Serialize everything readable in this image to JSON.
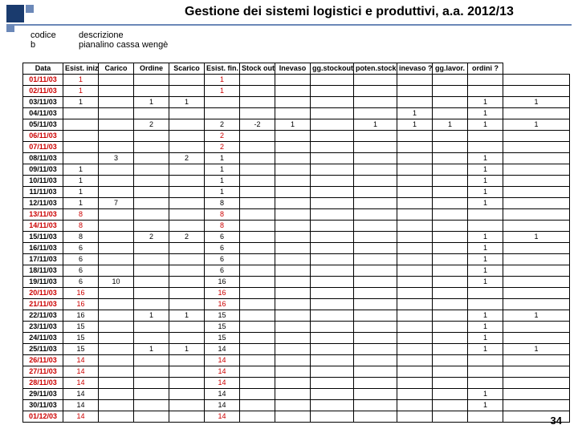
{
  "title": "Gestione dei sistemi logistici e produttivi, a.a. 2012/13",
  "page_number": "34",
  "meta": {
    "code_label": "codice",
    "code_value": "b",
    "desc_label": "descrizione",
    "desc_value": "pianalino cassa wengè"
  },
  "columns": [
    "Data",
    "Esist. iniz.",
    "Carico",
    "Ordine",
    "Scarico",
    "Esist. fin.",
    "Stock out",
    "Inevaso",
    "gg.stockout",
    "poten.stockout",
    "inevaso ?",
    "gg.lavor.",
    "ordini ?"
  ],
  "rows": [
    {
      "date": "01/11/03",
      "red": true,
      "cells": [
        "1",
        "",
        "",
        "",
        "1",
        "",
        "",
        "",
        "",
        "",
        "",
        "",
        ""
      ]
    },
    {
      "date": "02/11/03",
      "red": true,
      "cells": [
        "1",
        "",
        "",
        "",
        "1",
        "",
        "",
        "",
        "",
        "",
        "",
        "",
        ""
      ]
    },
    {
      "date": "03/11/03",
      "red": false,
      "cells": [
        "1",
        "",
        "1",
        "1",
        "",
        "",
        "",
        "",
        "",
        "",
        "",
        "1",
        "1"
      ]
    },
    {
      "date": "04/11/03",
      "red": false,
      "cells": [
        "",
        "",
        "",
        "",
        "",
        "",
        "",
        "",
        "",
        "1",
        "",
        "1",
        ""
      ]
    },
    {
      "date": "05/11/03",
      "red": false,
      "cells": [
        "",
        "",
        "2",
        "",
        "2",
        "-2",
        "1",
        "",
        "1",
        "1",
        "1",
        "1",
        "1"
      ]
    },
    {
      "date": "06/11/03",
      "red": true,
      "cells": [
        "",
        "",
        "",
        "",
        "2",
        "",
        "",
        "",
        "",
        "",
        "",
        "",
        ""
      ]
    },
    {
      "date": "07/11/03",
      "red": true,
      "cells": [
        "",
        "",
        "",
        "",
        "2",
        "",
        "",
        "",
        "",
        "",
        "",
        "",
        ""
      ]
    },
    {
      "date": "08/11/03",
      "red": false,
      "cells": [
        "",
        "3",
        "",
        "2",
        "1",
        "",
        "",
        "",
        "",
        "",
        "",
        "1",
        ""
      ]
    },
    {
      "date": "09/11/03",
      "red": false,
      "cells": [
        "1",
        "",
        "",
        "",
        "1",
        "",
        "",
        "",
        "",
        "",
        "",
        "1",
        ""
      ]
    },
    {
      "date": "10/11/03",
      "red": false,
      "cells": [
        "1",
        "",
        "",
        "",
        "1",
        "",
        "",
        "",
        "",
        "",
        "",
        "1",
        ""
      ]
    },
    {
      "date": "11/11/03",
      "red": false,
      "cells": [
        "1",
        "",
        "",
        "",
        "1",
        "",
        "",
        "",
        "",
        "",
        "",
        "1",
        ""
      ]
    },
    {
      "date": "12/11/03",
      "red": false,
      "cells": [
        "1",
        "7",
        "",
        "",
        "8",
        "",
        "",
        "",
        "",
        "",
        "",
        "1",
        ""
      ]
    },
    {
      "date": "13/11/03",
      "red": true,
      "cells": [
        "8",
        "",
        "",
        "",
        "8",
        "",
        "",
        "",
        "",
        "",
        "",
        "",
        ""
      ]
    },
    {
      "date": "14/11/03",
      "red": true,
      "cells": [
        "8",
        "",
        "",
        "",
        "8",
        "",
        "",
        "",
        "",
        "",
        "",
        "",
        ""
      ]
    },
    {
      "date": "15/11/03",
      "red": false,
      "cells": [
        "8",
        "",
        "2",
        "2",
        "6",
        "",
        "",
        "",
        "",
        "",
        "",
        "1",
        "1"
      ]
    },
    {
      "date": "16/11/03",
      "red": false,
      "cells": [
        "6",
        "",
        "",
        "",
        "6",
        "",
        "",
        "",
        "",
        "",
        "",
        "1",
        ""
      ]
    },
    {
      "date": "17/11/03",
      "red": false,
      "cells": [
        "6",
        "",
        "",
        "",
        "6",
        "",
        "",
        "",
        "",
        "",
        "",
        "1",
        ""
      ]
    },
    {
      "date": "18/11/03",
      "red": false,
      "cells": [
        "6",
        "",
        "",
        "",
        "6",
        "",
        "",
        "",
        "",
        "",
        "",
        "1",
        ""
      ]
    },
    {
      "date": "19/11/03",
      "red": false,
      "cells": [
        "6",
        "10",
        "",
        "",
        "16",
        "",
        "",
        "",
        "",
        "",
        "",
        "1",
        ""
      ]
    },
    {
      "date": "20/11/03",
      "red": true,
      "cells": [
        "16",
        "",
        "",
        "",
        "16",
        "",
        "",
        "",
        "",
        "",
        "",
        "",
        ""
      ]
    },
    {
      "date": "21/11/03",
      "red": true,
      "cells": [
        "16",
        "",
        "",
        "",
        "16",
        "",
        "",
        "",
        "",
        "",
        "",
        "",
        ""
      ]
    },
    {
      "date": "22/11/03",
      "red": false,
      "cells": [
        "16",
        "",
        "1",
        "1",
        "15",
        "",
        "",
        "",
        "",
        "",
        "",
        "1",
        "1"
      ]
    },
    {
      "date": "23/11/03",
      "red": false,
      "cells": [
        "15",
        "",
        "",
        "",
        "15",
        "",
        "",
        "",
        "",
        "",
        "",
        "1",
        ""
      ]
    },
    {
      "date": "24/11/03",
      "red": false,
      "cells": [
        "15",
        "",
        "",
        "",
        "15",
        "",
        "",
        "",
        "",
        "",
        "",
        "1",
        ""
      ]
    },
    {
      "date": "25/11/03",
      "red": false,
      "cells": [
        "15",
        "",
        "1",
        "1",
        "14",
        "",
        "",
        "",
        "",
        "",
        "",
        "1",
        "1"
      ]
    },
    {
      "date": "26/11/03",
      "red": true,
      "cells": [
        "14",
        "",
        "",
        "",
        "14",
        "",
        "",
        "",
        "",
        "",
        "",
        "",
        ""
      ]
    },
    {
      "date": "27/11/03",
      "red": true,
      "cells": [
        "14",
        "",
        "",
        "",
        "14",
        "",
        "",
        "",
        "",
        "",
        "",
        "",
        ""
      ]
    },
    {
      "date": "28/11/03",
      "red": true,
      "cells": [
        "14",
        "",
        "",
        "",
        "14",
        "",
        "",
        "",
        "",
        "",
        "",
        "",
        ""
      ]
    },
    {
      "date": "29/11/03",
      "red": false,
      "cells": [
        "14",
        "",
        "",
        "",
        "14",
        "",
        "",
        "",
        "",
        "",
        "",
        "1",
        ""
      ]
    },
    {
      "date": "30/11/03",
      "red": false,
      "cells": [
        "14",
        "",
        "",
        "",
        "14",
        "",
        "",
        "",
        "",
        "",
        "",
        "1",
        ""
      ]
    },
    {
      "date": "01/12/03",
      "red": true,
      "cells": [
        "14",
        "",
        "",
        "",
        "14",
        "",
        "",
        "",
        "",
        "",
        "",
        "",
        ""
      ]
    }
  ]
}
